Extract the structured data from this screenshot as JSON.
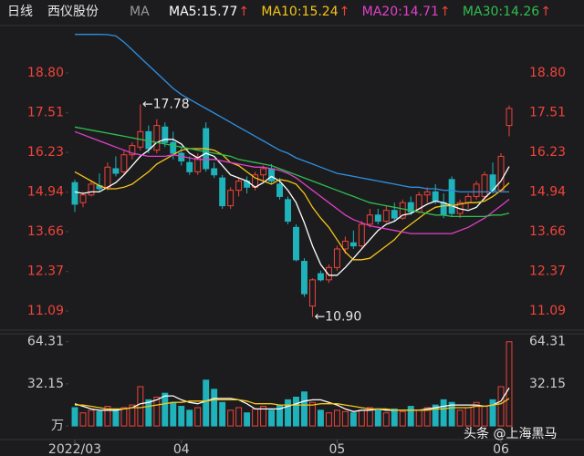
{
  "chart_data": {
    "type": "candlestick",
    "header": {
      "period": "日线",
      "name": "西仪股份",
      "ma": "MA",
      "arrow": "↑"
    },
    "categories": [
      "2022/03",
      null,
      null,
      null,
      null,
      null,
      null,
      null,
      null,
      null,
      null,
      null,
      null,
      "04",
      null,
      null,
      null,
      null,
      null,
      null,
      null,
      null,
      null,
      null,
      null,
      null,
      null,
      null,
      null,
      null,
      null,
      null,
      "05",
      null,
      null,
      null,
      null,
      null,
      null,
      null,
      null,
      null,
      null,
      null,
      null,
      null,
      null,
      null,
      null,
      null,
      null,
      null,
      "06",
      null
    ],
    "open": [
      15.25,
      14.6,
      14.85,
      15.15,
      15.1,
      15.7,
      15.6,
      16.15,
      16.4,
      16.9,
      16.3,
      17.05,
      16.55,
      16.2,
      15.9,
      15.6,
      17.0,
      15.7,
      15.4,
      14.5,
      15.0,
      15.3,
      15.1,
      15.5,
      15.7,
      15.2,
      14.7,
      13.8,
      12.7,
      11.25,
      12.3,
      12.1,
      12.5,
      13.1,
      13.3,
      13.2,
      13.9,
      14.2,
      14.0,
      14.35,
      14.1,
      14.6,
      14.3,
      14.85,
      14.95,
      14.6,
      15.35,
      14.25,
      14.6,
      14.8,
      14.8,
      15.5,
      15.0,
      17.1
    ],
    "high": [
      15.35,
      14.95,
      15.3,
      15.55,
      15.9,
      16.1,
      16.3,
      16.55,
      17.78,
      17.1,
      17.3,
      17.2,
      16.9,
      16.4,
      16.1,
      16.2,
      17.2,
      15.9,
      15.5,
      15.1,
      15.4,
      15.45,
      15.6,
      15.8,
      15.85,
      15.4,
      14.8,
      13.9,
      12.8,
      12.15,
      12.4,
      12.6,
      13.2,
      13.5,
      13.7,
      14.0,
      14.4,
      14.4,
      14.5,
      14.6,
      14.7,
      14.8,
      14.95,
      15.1,
      15.2,
      14.9,
      15.45,
      14.7,
      14.9,
      15.3,
      15.6,
      15.9,
      16.2,
      17.75
    ],
    "low": [
      14.3,
      14.45,
      14.8,
      14.95,
      15.0,
      15.45,
      15.5,
      16.0,
      16.3,
      16.2,
      16.2,
      16.4,
      16.0,
      15.8,
      15.5,
      15.5,
      15.6,
      15.4,
      14.4,
      14.4,
      14.8,
      14.9,
      15.0,
      15.3,
      15.2,
      14.7,
      13.9,
      12.7,
      11.55,
      10.9,
      12.05,
      12.0,
      12.4,
      12.95,
      13.1,
      13.15,
      13.8,
      13.9,
      13.95,
      14.0,
      14.05,
      14.2,
      14.25,
      14.6,
      14.55,
      14.1,
      14.15,
      14.1,
      14.4,
      14.7,
      14.7,
      14.9,
      14.95,
      16.75
    ],
    "close": [
      14.55,
      14.85,
      15.2,
      15.05,
      15.75,
      15.55,
      16.15,
      16.45,
      16.9,
      16.35,
      17.1,
      16.55,
      16.2,
      15.95,
      15.6,
      16.05,
      15.7,
      15.5,
      14.5,
      15.0,
      15.3,
      15.1,
      15.5,
      15.7,
      15.3,
      14.8,
      14.0,
      12.75,
      11.65,
      12.1,
      12.1,
      12.5,
      13.1,
      13.35,
      13.2,
      13.9,
      14.2,
      14.0,
      14.35,
      14.1,
      14.6,
      14.3,
      14.85,
      14.95,
      14.65,
      14.2,
      14.25,
      14.6,
      14.8,
      15.2,
      15.5,
      15.0,
      16.1,
      17.65
    ],
    "up_color": "#f0433a",
    "down_color": "#1fb2bb",
    "ylim": [
      10.53,
      20.13
    ],
    "yticks": [
      11.09,
      12.37,
      13.66,
      14.94,
      16.23,
      17.51,
      18.8
    ],
    "ytick_labels": [
      "11.09",
      "12.37",
      "13.66",
      "14.94",
      "16.23",
      "17.51",
      "18.80"
    ],
    "series": [
      {
        "name": "MA5:15.77",
        "color": "#ffffff",
        "values": [
          14.95,
          14.9,
          14.95,
          14.95,
          15.1,
          15.25,
          15.5,
          15.8,
          16.1,
          16.3,
          16.55,
          16.65,
          16.65,
          16.5,
          16.2,
          16.05,
          16.2,
          16.1,
          15.8,
          15.5,
          15.4,
          15.3,
          15.1,
          15.25,
          15.45,
          15.3,
          15.0,
          14.6,
          13.95,
          13.2,
          12.6,
          12.25,
          12.25,
          12.5,
          12.8,
          13.1,
          13.4,
          13.7,
          13.9,
          14.0,
          14.2,
          14.25,
          14.4,
          14.55,
          14.65,
          14.6,
          14.5,
          14.4,
          14.35,
          14.45,
          14.75,
          15.0,
          15.3,
          15.77
        ]
      },
      {
        "name": "MA10:15.24",
        "color": "#f5c518",
        "values": [
          15.6,
          15.45,
          15.3,
          15.15,
          15.05,
          15.05,
          15.1,
          15.2,
          15.4,
          15.6,
          15.85,
          16.0,
          16.15,
          16.3,
          16.35,
          16.35,
          16.35,
          16.3,
          16.15,
          15.9,
          15.8,
          15.6,
          15.4,
          15.3,
          15.2,
          15.35,
          15.3,
          15.2,
          14.9,
          14.45,
          14.1,
          13.8,
          13.4,
          13.0,
          12.75,
          12.75,
          12.8,
          13.0,
          13.2,
          13.4,
          13.7,
          13.9,
          14.1,
          14.3,
          14.45,
          14.5,
          14.5,
          14.55,
          14.6,
          14.6,
          14.65,
          14.8,
          15.0,
          15.24
        ]
      },
      {
        "name": "MA20:14.71",
        "color": "#e040c8",
        "values": [
          16.9,
          16.8,
          16.7,
          16.6,
          16.5,
          16.4,
          16.3,
          16.2,
          16.15,
          16.1,
          16.1,
          16.1,
          16.15,
          16.1,
          16.05,
          16.0,
          16.0,
          16.0,
          15.95,
          15.9,
          15.85,
          15.8,
          15.75,
          15.75,
          15.7,
          15.65,
          15.55,
          15.4,
          15.2,
          15.0,
          14.8,
          14.6,
          14.4,
          14.2,
          14.05,
          13.95,
          13.85,
          13.8,
          13.75,
          13.7,
          13.65,
          13.6,
          13.6,
          13.6,
          13.6,
          13.6,
          13.6,
          13.7,
          13.8,
          13.95,
          14.1,
          14.3,
          14.5,
          14.71
        ]
      },
      {
        "name": "MA30:14.26",
        "color": "#2fbf4f",
        "values": [
          17.05,
          17.0,
          16.95,
          16.9,
          16.85,
          16.8,
          16.75,
          16.7,
          16.65,
          16.6,
          16.55,
          16.5,
          16.45,
          16.4,
          16.35,
          16.3,
          16.25,
          16.2,
          16.15,
          16.1,
          16.0,
          15.95,
          15.9,
          15.85,
          15.8,
          15.7,
          15.6,
          15.5,
          15.4,
          15.3,
          15.2,
          15.1,
          15.0,
          14.9,
          14.8,
          14.7,
          14.6,
          14.55,
          14.5,
          14.45,
          14.4,
          14.35,
          14.3,
          14.25,
          14.2,
          14.2,
          14.15,
          14.15,
          14.15,
          14.15,
          14.15,
          14.2,
          14.2,
          14.26
        ]
      },
      {
        "color": "#2f8fe0",
        "values": [
          20.05,
          20.05,
          20.05,
          20.05,
          20.04,
          20.0,
          19.8,
          19.55,
          19.3,
          19.05,
          18.8,
          18.55,
          18.3,
          18.1,
          17.95,
          17.8,
          17.65,
          17.5,
          17.35,
          17.2,
          17.05,
          16.9,
          16.75,
          16.6,
          16.45,
          16.3,
          16.2,
          16.05,
          15.95,
          15.85,
          15.75,
          15.65,
          15.55,
          15.5,
          15.45,
          15.4,
          15.35,
          15.3,
          15.25,
          15.2,
          15.15,
          15.1,
          15.1,
          15.05,
          15.05,
          15.0,
          15.0,
          14.95,
          14.95,
          14.95,
          14.95,
          14.95,
          14.95,
          14.95
        ]
      }
    ],
    "annotations": {
      "high": "←17.78",
      "low": "←10.90"
    },
    "volume": {
      "values": [
        14,
        10,
        12,
        11,
        15,
        12,
        14,
        16,
        30,
        20,
        22,
        25,
        18,
        15,
        12,
        14,
        35,
        28,
        18,
        12,
        14,
        10,
        13,
        15,
        12,
        16,
        20,
        22,
        26,
        18,
        12,
        10,
        12,
        11,
        10,
        12,
        14,
        12,
        10,
        13,
        11,
        15,
        12,
        14,
        16,
        20,
        18,
        12,
        14,
        18,
        15,
        20,
        30,
        64.31
      ],
      "ylim": [
        -9,
        69
      ],
      "yticks": [
        {
          "value": 0,
          "label": "万"
        },
        32.15,
        64.31
      ],
      "series": [
        {
          "color": "#ffffff",
          "values": [
            17,
            15,
            13,
            12,
            12,
            12,
            13,
            14,
            17,
            18,
            20,
            23,
            23,
            20,
            18,
            17,
            19,
            21,
            21,
            21,
            20,
            17,
            13,
            13,
            13,
            13,
            15,
            17,
            19,
            20,
            20,
            18,
            16,
            13,
            11,
            12,
            12,
            13,
            12,
            12,
            12,
            12,
            12,
            13,
            14,
            15,
            16,
            16,
            16,
            16,
            15,
            16,
            19,
            29
          ]
        },
        {
          "color": "#f5c518",
          "values": [
            16,
            16,
            15,
            14,
            13,
            13,
            13,
            14,
            14,
            15,
            16,
            17,
            18,
            18,
            19,
            19,
            19,
            20,
            20,
            20,
            20,
            19,
            17,
            17,
            17,
            16,
            16,
            16,
            16,
            16,
            17,
            17,
            17,
            16,
            15,
            14,
            13,
            13,
            13,
            12,
            12,
            12,
            12,
            12,
            13,
            13,
            14,
            14,
            14,
            15,
            15,
            16,
            17,
            21
          ]
        }
      ]
    },
    "watermark": "头条 @上海黑马"
  }
}
